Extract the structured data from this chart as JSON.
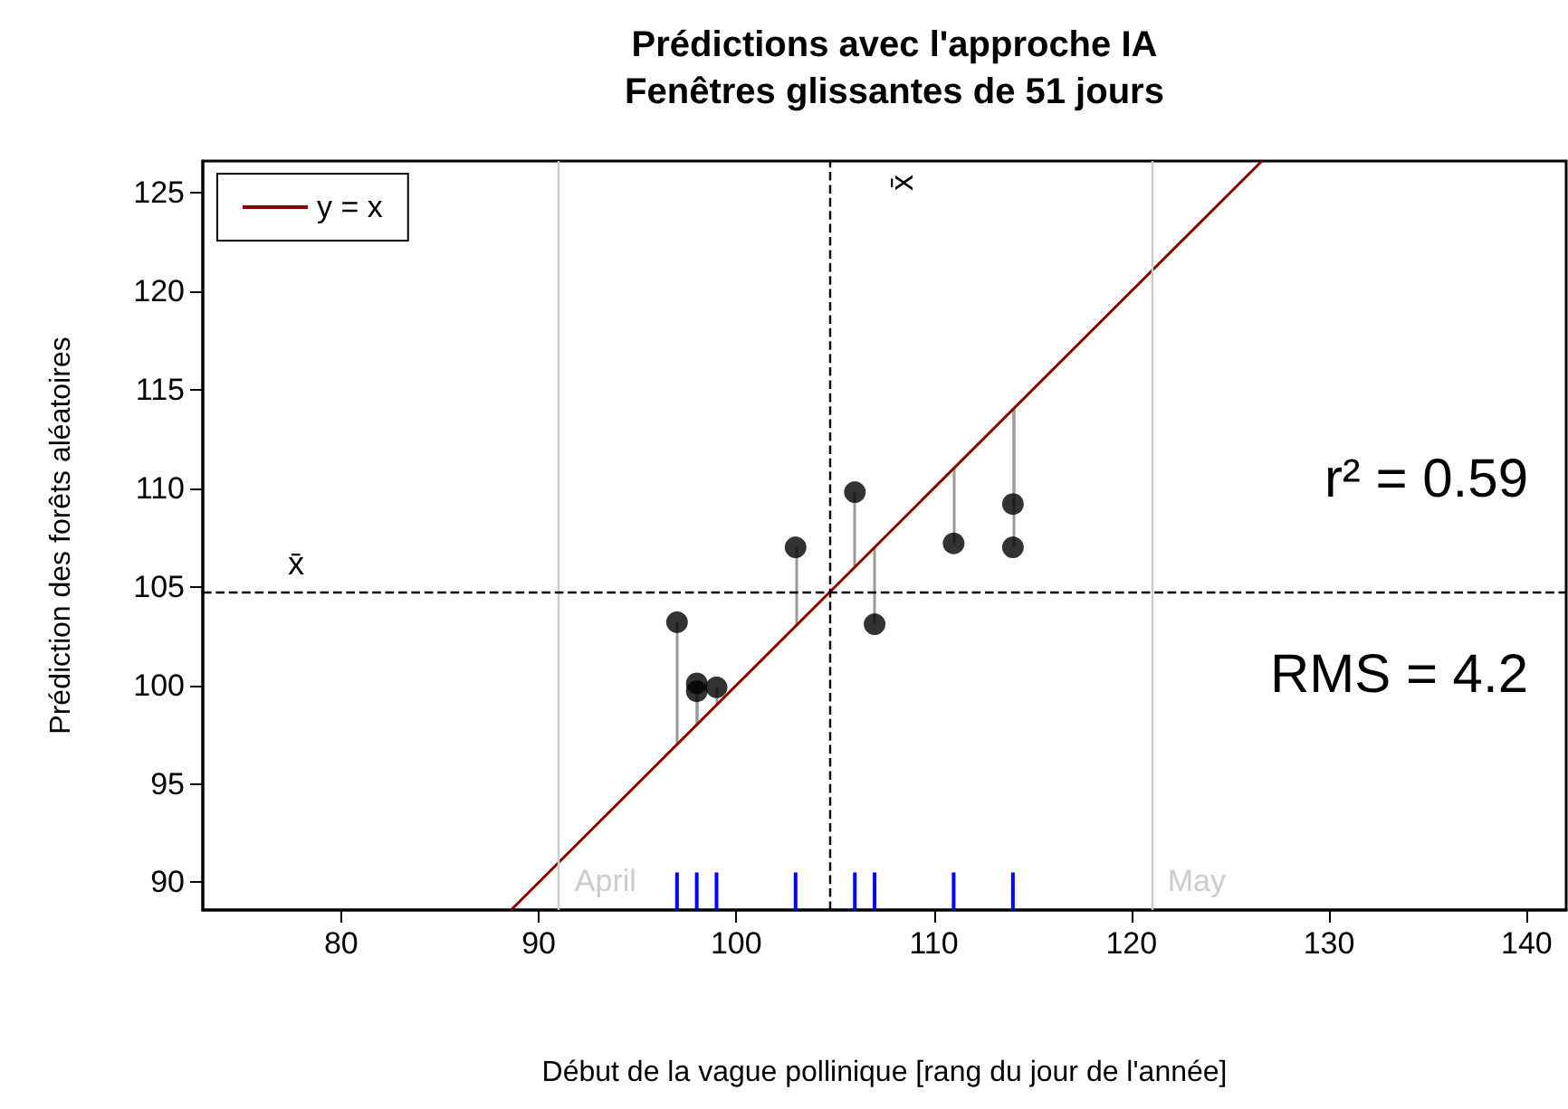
{
  "chart_data": {
    "type": "scatter",
    "title": "Prédictions avec l'approche IA",
    "subtitle": "Fenêtres glissantes de 51 jours",
    "xlabel": "Début de la vague pollinique [rang du jour de l'année]",
    "ylabel": "Prédiction des forêts aléatoires",
    "series": [
      {
        "type": "line",
        "name": "y = x",
        "color": "#8b0000",
        "x": [
          88.6,
          126.6
        ],
        "values": [
          88.6,
          126.6
        ],
        "line_style": "solid",
        "marker": "none"
      },
      {
        "color": "#000000",
        "marker": "circle",
        "x": [
          97,
          98,
          98,
          99,
          103,
          106,
          107,
          111,
          114,
          114
        ],
        "values": [
          103.2,
          100.1,
          99.7,
          99.9,
          107.0,
          109.8,
          103.1,
          107.2,
          109.2,
          107.0
        ],
        "errors": [
          [
            97,
            103.2
          ],
          [
            98,
            100.1
          ],
          [
            98,
            99.7
          ],
          [
            99,
            99.9
          ],
          [
            103,
            107.0
          ],
          [
            106,
            109.8
          ],
          [
            103.1,
            107
          ],
          [
            107.2,
            111
          ],
          [
            109.2,
            114
          ],
          [
            107.0,
            114
          ]
        ]
      },
      {
        "type": "bar",
        "color": "#0000ff",
        "x": [
          97,
          98,
          99,
          103,
          106,
          107,
          111,
          114
        ],
        "values": [
          90.5,
          90.5,
          90.5,
          90.5,
          90.5,
          90.5,
          90.5,
          90.5
        ]
      }
    ],
    "xlim": [
      73,
      142
    ],
    "xticks": [
      80,
      90,
      100,
      110,
      120,
      130,
      140
    ],
    "ylim": [
      88.6,
      126.6
    ],
    "yticks": [
      90,
      95,
      100,
      105,
      110,
      115,
      120,
      125
    ],
    "ref_lines": [
      {
        "axis": "x",
        "value": 91,
        "label": "April",
        "color": "#cccccc",
        "line_style": "solid"
      },
      {
        "axis": "x",
        "value": 121,
        "label": "May",
        "color": "#cccccc",
        "line_style": "solid"
      },
      {
        "axis": "x",
        "value": 104.7,
        "label": "x̄",
        "color": "#000000",
        "line_style": "dashed"
      },
      {
        "axis": "y",
        "value": 104.7,
        "label": "x̄",
        "color": "#000000",
        "line_style": "dashed"
      }
    ],
    "annotations": [
      "r² = 0.59",
      "RMS = 4.2"
    ],
    "legend": "top left",
    "grid": false
  }
}
